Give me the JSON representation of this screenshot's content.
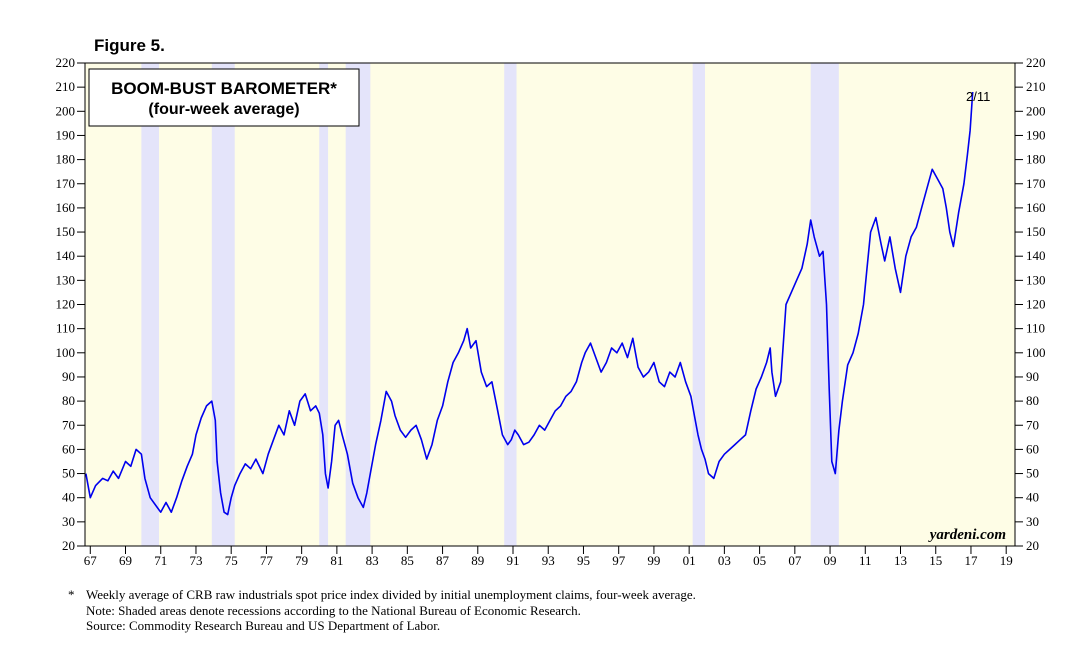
{
  "figure_label": "Figure 5.",
  "title_line1": "BOOM-BUST BAROMETER*",
  "title_line2": "(four-week average)",
  "end_label": "2/11",
  "watermark": "yardeni.com",
  "footnote_mark": "*",
  "footnote": "Weekly average of CRB raw industrials spot price index divided by initial unemployment claims, four-week average.",
  "note": "Note: Shaded areas denote recessions according to the National Bureau of Economic Research.",
  "source": "Source: Commodity Research Bureau and US Department of Labor.",
  "colors": {
    "background": "#fefde6",
    "recession": "#e4e4fa",
    "line": "#0000ee"
  },
  "chart_data": {
    "type": "line",
    "title": "BOOM-BUST BAROMETER* (four-week average)",
    "xlabel": "",
    "ylabel": "",
    "xlim": [
      1966.7,
      2019.5
    ],
    "ylim": [
      20,
      220
    ],
    "yticks": [
      20,
      30,
      40,
      50,
      60,
      70,
      80,
      90,
      100,
      110,
      120,
      130,
      140,
      150,
      160,
      170,
      180,
      190,
      200,
      210,
      220
    ],
    "xticks": [
      {
        "year": 1967,
        "label": "67"
      },
      {
        "year": 1969,
        "label": "69"
      },
      {
        "year": 1971,
        "label": "71"
      },
      {
        "year": 1973,
        "label": "73"
      },
      {
        "year": 1975,
        "label": "75"
      },
      {
        "year": 1977,
        "label": "77"
      },
      {
        "year": 1979,
        "label": "79"
      },
      {
        "year": 1981,
        "label": "81"
      },
      {
        "year": 1983,
        "label": "83"
      },
      {
        "year": 1985,
        "label": "85"
      },
      {
        "year": 1987,
        "label": "87"
      },
      {
        "year": 1989,
        "label": "89"
      },
      {
        "year": 1991,
        "label": "91"
      },
      {
        "year": 1993,
        "label": "93"
      },
      {
        "year": 1995,
        "label": "95"
      },
      {
        "year": 1997,
        "label": "97"
      },
      {
        "year": 1999,
        "label": "99"
      },
      {
        "year": 2001,
        "label": "01"
      },
      {
        "year": 2003,
        "label": "03"
      },
      {
        "year": 2005,
        "label": "05"
      },
      {
        "year": 2007,
        "label": "07"
      },
      {
        "year": 2009,
        "label": "09"
      },
      {
        "year": 2011,
        "label": "11"
      },
      {
        "year": 2013,
        "label": "13"
      },
      {
        "year": 2015,
        "label": "15"
      },
      {
        "year": 2017,
        "label": "17"
      },
      {
        "year": 2019,
        "label": "19"
      }
    ],
    "recessions": [
      [
        1969.9,
        1970.9
      ],
      [
        1973.9,
        1975.2
      ],
      [
        1980.0,
        1980.5
      ],
      [
        1981.5,
        1982.9
      ],
      [
        1990.5,
        1991.2
      ],
      [
        2001.2,
        2001.9
      ],
      [
        2007.9,
        2009.5
      ]
    ],
    "series": [
      {
        "name": "Boom-Bust Barometer",
        "x": [
          1966.75,
          1967.0,
          1967.3,
          1967.7,
          1968.0,
          1968.3,
          1968.6,
          1969.0,
          1969.3,
          1969.6,
          1969.9,
          1970.1,
          1970.4,
          1970.8,
          1971.0,
          1971.3,
          1971.6,
          1971.9,
          1972.2,
          1972.5,
          1972.8,
          1973.0,
          1973.3,
          1973.6,
          1973.9,
          1974.1,
          1974.2,
          1974.4,
          1974.6,
          1974.8,
          1975.0,
          1975.2,
          1975.5,
          1975.8,
          1976.1,
          1976.4,
          1976.8,
          1977.1,
          1977.4,
          1977.7,
          1978.0,
          1978.3,
          1978.6,
          1978.9,
          1979.2,
          1979.5,
          1979.8,
          1980.0,
          1980.2,
          1980.35,
          1980.5,
          1980.7,
          1980.9,
          1981.1,
          1981.3,
          1981.6,
          1981.9,
          1982.2,
          1982.5,
          1982.7,
          1982.9,
          1983.2,
          1983.5,
          1983.8,
          1984.1,
          1984.3,
          1984.6,
          1984.9,
          1985.2,
          1985.5,
          1985.8,
          1986.1,
          1986.4,
          1986.7,
          1987.0,
          1987.3,
          1987.6,
          1987.9,
          1988.2,
          1988.4,
          1988.6,
          1988.9,
          1989.2,
          1989.5,
          1989.8,
          1990.1,
          1990.4,
          1990.7,
          1990.9,
          1991.1,
          1991.3,
          1991.6,
          1991.9,
          1992.2,
          1992.5,
          1992.8,
          1993.1,
          1993.4,
          1993.7,
          1994.0,
          1994.3,
          1994.6,
          1994.9,
          1995.1,
          1995.4,
          1995.7,
          1996.0,
          1996.3,
          1996.6,
          1996.9,
          1997.2,
          1997.5,
          1997.8,
          1998.1,
          1998.4,
          1998.7,
          1999.0,
          1999.3,
          1999.6,
          1999.9,
          2000.2,
          2000.5,
          2000.8,
          2001.1,
          2001.3,
          2001.5,
          2001.7,
          2001.9,
          2002.1,
          2002.4,
          2002.7,
          2003.0,
          2003.3,
          2003.6,
          2003.9,
          2004.2,
          2004.5,
          2004.8,
          2005.1,
          2005.4,
          2005.6,
          2005.7,
          2005.9,
          2006.2,
          2006.5,
          2006.8,
          2007.1,
          2007.4,
          2007.7,
          2007.9,
          2008.1,
          2008.4,
          2008.6,
          2008.8,
          2008.95,
          2009.1,
          2009.3,
          2009.5,
          2009.7,
          2010.0,
          2010.3,
          2010.6,
          2010.9,
          2011.1,
          2011.3,
          2011.6,
          2011.9,
          2012.1,
          2012.4,
          2012.7,
          2013.0,
          2013.3,
          2013.6,
          2013.9,
          2014.2,
          2014.5,
          2014.8,
          2015.1,
          2015.4,
          2015.6,
          2015.8,
          2016.0,
          2016.3,
          2016.6,
          2016.8,
          2016.95,
          2017.1
        ],
        "values": [
          50,
          40,
          45,
          48,
          47,
          51,
          48,
          55,
          53,
          60,
          58,
          48,
          40,
          36,
          34,
          38,
          34,
          40,
          47,
          53,
          58,
          66,
          73,
          78,
          80,
          72,
          55,
          42,
          34,
          33,
          40,
          45,
          50,
          54,
          52,
          56,
          50,
          58,
          64,
          70,
          66,
          76,
          70,
          80,
          83,
          76,
          78,
          75,
          66,
          50,
          44,
          55,
          70,
          72,
          66,
          58,
          46,
          40,
          36,
          42,
          50,
          62,
          72,
          84,
          80,
          74,
          68,
          65,
          68,
          70,
          64,
          56,
          62,
          72,
          78,
          88,
          96,
          100,
          105,
          110,
          102,
          105,
          92,
          86,
          88,
          77,
          66,
          62,
          64,
          68,
          66,
          62,
          63,
          66,
          70,
          68,
          72,
          76,
          78,
          82,
          84,
          88,
          96,
          100,
          104,
          98,
          92,
          96,
          102,
          100,
          104,
          98,
          106,
          94,
          90,
          92,
          96,
          88,
          86,
          92,
          90,
          96,
          88,
          82,
          74,
          66,
          60,
          56,
          50,
          48,
          55,
          58,
          60,
          62,
          64,
          66,
          76,
          85,
          90,
          96,
          102,
          92,
          82,
          88,
          120,
          125,
          130,
          135,
          145,
          155,
          148,
          140,
          142,
          120,
          85,
          55,
          50,
          68,
          80,
          95,
          100,
          108,
          120,
          135,
          150,
          156,
          145,
          138,
          148,
          135,
          125,
          140,
          148,
          152,
          160,
          168,
          176,
          172,
          168,
          160,
          150,
          144,
          158,
          170,
          182,
          192,
          208
        ]
      }
    ]
  }
}
